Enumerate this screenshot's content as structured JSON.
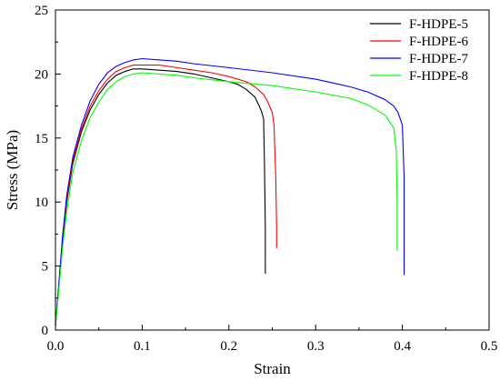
{
  "chart_data": {
    "type": "line",
    "title": "",
    "xlabel": "Strain",
    "ylabel": "Stress (MPa)",
    "xlim": [
      0.0,
      0.5
    ],
    "ylim": [
      0,
      25
    ],
    "x_ticks": [
      "0.0",
      "0.1",
      "0.2",
      "0.3",
      "0.4",
      "0.5"
    ],
    "y_ticks": [
      "0",
      "5",
      "10",
      "15",
      "20",
      "25"
    ],
    "grid": false,
    "legend_position": "top-right",
    "series": [
      {
        "name": "F-HDPE-5",
        "color": "#000000",
        "points": [
          [
            0.0,
            0.3
          ],
          [
            0.004,
            3.5
          ],
          [
            0.008,
            6.8
          ],
          [
            0.013,
            10.0
          ],
          [
            0.02,
            13.0
          ],
          [
            0.03,
            15.5
          ],
          [
            0.04,
            17.2
          ],
          [
            0.05,
            18.4
          ],
          [
            0.06,
            19.3
          ],
          [
            0.07,
            19.9
          ],
          [
            0.08,
            20.2
          ],
          [
            0.09,
            20.4
          ],
          [
            0.1,
            20.4
          ],
          [
            0.12,
            20.3
          ],
          [
            0.14,
            20.2
          ],
          [
            0.16,
            20.0
          ],
          [
            0.18,
            19.7
          ],
          [
            0.2,
            19.4
          ],
          [
            0.21,
            19.2
          ],
          [
            0.22,
            18.8
          ],
          [
            0.23,
            18.2
          ],
          [
            0.235,
            17.5
          ],
          [
            0.238,
            17.0
          ],
          [
            0.24,
            16.5
          ],
          [
            0.241,
            13.0
          ],
          [
            0.242,
            8.0
          ],
          [
            0.242,
            4.4
          ]
        ]
      },
      {
        "name": "F-HDPE-6",
        "color": "#ff0000",
        "points": [
          [
            0.0,
            0.3
          ],
          [
            0.004,
            3.6
          ],
          [
            0.008,
            7.0
          ],
          [
            0.013,
            10.2
          ],
          [
            0.02,
            13.2
          ],
          [
            0.03,
            15.7
          ],
          [
            0.04,
            17.5
          ],
          [
            0.05,
            18.7
          ],
          [
            0.06,
            19.6
          ],
          [
            0.07,
            20.2
          ],
          [
            0.08,
            20.5
          ],
          [
            0.09,
            20.7
          ],
          [
            0.1,
            20.7
          ],
          [
            0.12,
            20.7
          ],
          [
            0.14,
            20.5
          ],
          [
            0.16,
            20.3
          ],
          [
            0.18,
            20.1
          ],
          [
            0.2,
            19.8
          ],
          [
            0.22,
            19.4
          ],
          [
            0.23,
            19.0
          ],
          [
            0.24,
            18.4
          ],
          [
            0.245,
            17.8
          ],
          [
            0.25,
            17.0
          ],
          [
            0.252,
            16.0
          ],
          [
            0.254,
            12.0
          ],
          [
            0.255,
            8.0
          ],
          [
            0.255,
            6.4
          ]
        ]
      },
      {
        "name": "F-HDPE-7",
        "color": "#0000ff",
        "points": [
          [
            0.0,
            0.3
          ],
          [
            0.004,
            3.7
          ],
          [
            0.008,
            7.2
          ],
          [
            0.013,
            10.5
          ],
          [
            0.02,
            13.5
          ],
          [
            0.03,
            16.0
          ],
          [
            0.04,
            17.9
          ],
          [
            0.05,
            19.2
          ],
          [
            0.06,
            20.1
          ],
          [
            0.07,
            20.6
          ],
          [
            0.08,
            20.9
          ],
          [
            0.09,
            21.1
          ],
          [
            0.1,
            21.2
          ],
          [
            0.12,
            21.1
          ],
          [
            0.14,
            21.0
          ],
          [
            0.16,
            20.8
          ],
          [
            0.2,
            20.5
          ],
          [
            0.25,
            20.1
          ],
          [
            0.3,
            19.6
          ],
          [
            0.34,
            19.0
          ],
          [
            0.36,
            18.6
          ],
          [
            0.38,
            18.0
          ],
          [
            0.39,
            17.5
          ],
          [
            0.395,
            17.0
          ],
          [
            0.4,
            16.0
          ],
          [
            0.402,
            12.0
          ],
          [
            0.402,
            8.0
          ],
          [
            0.402,
            4.3
          ]
        ]
      },
      {
        "name": "F-HDPE-8",
        "color": "#00ff00",
        "points": [
          [
            0.0,
            0.3
          ],
          [
            0.004,
            3.2
          ],
          [
            0.008,
            6.3
          ],
          [
            0.013,
            9.3
          ],
          [
            0.02,
            12.3
          ],
          [
            0.03,
            14.8
          ],
          [
            0.04,
            16.6
          ],
          [
            0.05,
            17.8
          ],
          [
            0.06,
            18.8
          ],
          [
            0.07,
            19.4
          ],
          [
            0.08,
            19.8
          ],
          [
            0.09,
            20.0
          ],
          [
            0.1,
            20.1
          ],
          [
            0.12,
            20.0
          ],
          [
            0.14,
            19.9
          ],
          [
            0.16,
            19.7
          ],
          [
            0.2,
            19.4
          ],
          [
            0.25,
            19.1
          ],
          [
            0.3,
            18.6
          ],
          [
            0.34,
            18.1
          ],
          [
            0.36,
            17.6
          ],
          [
            0.38,
            16.8
          ],
          [
            0.39,
            15.8
          ],
          [
            0.393,
            14.0
          ],
          [
            0.394,
            10.0
          ],
          [
            0.394,
            6.2
          ]
        ]
      }
    ]
  }
}
